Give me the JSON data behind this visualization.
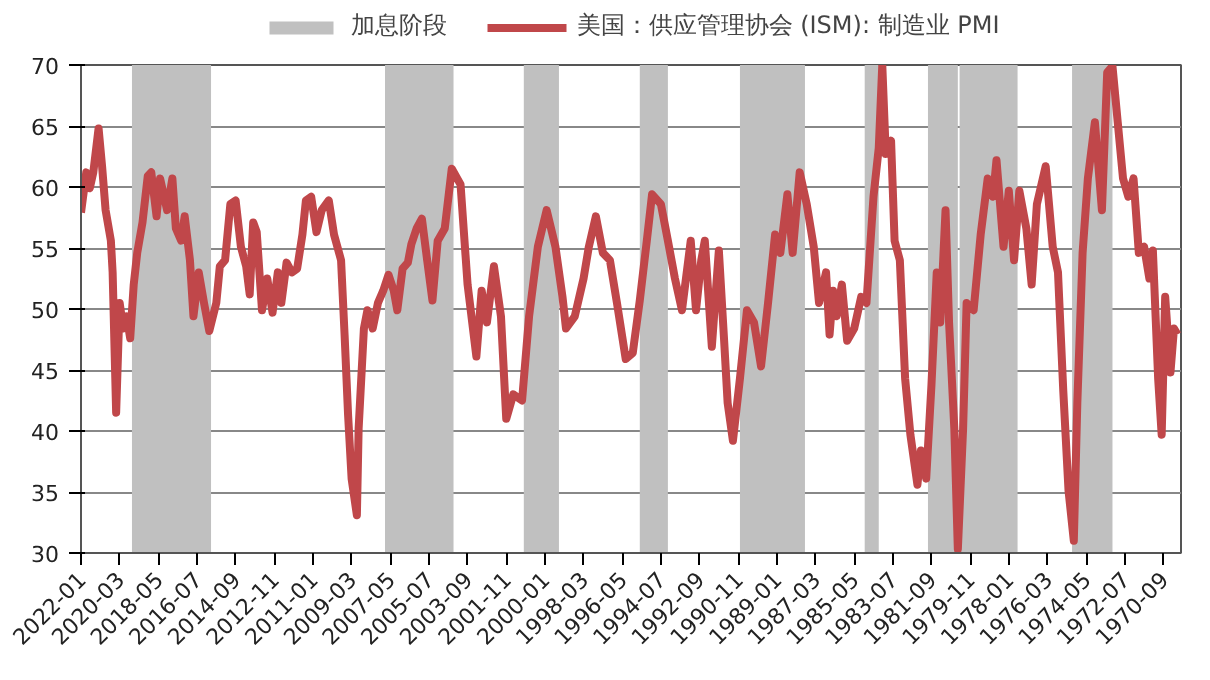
{
  "chart_data": {
    "type": "line",
    "xlim": [
      "2022-01",
      "1969-11"
    ],
    "ylim": [
      30,
      70
    ],
    "yticks": [
      30,
      35,
      40,
      45,
      50,
      55,
      60,
      65,
      70
    ],
    "xticks": [
      "2022-01",
      "2020-03",
      "2018-05",
      "2016-07",
      "2014-09",
      "2012-11",
      "2011-01",
      "2009-03",
      "2007-05",
      "2005-07",
      "2003-09",
      "2001-11",
      "2000-01",
      "1998-03",
      "1996-05",
      "1994-07",
      "1992-09",
      "1990-11",
      "1989-01",
      "1987-03",
      "1985-05",
      "1983-07",
      "1981-09",
      "1979-11",
      "1978-01",
      "1976-03",
      "1974-05",
      "1972-07",
      "1970-09"
    ],
    "grid": "y",
    "legend": "top",
    "bands": [
      {
        "axis": "x",
        "from": "2015-11",
        "to": "2019-08",
        "label": "加息阶段",
        "color": "#c0c0c0"
      },
      {
        "axis": "x",
        "from": "2004-05",
        "to": "2007-08",
        "color": "#c0c0c0"
      },
      {
        "axis": "x",
        "from": "1999-05",
        "to": "2001-01",
        "color": "#c0c0c0"
      },
      {
        "axis": "x",
        "from": "1994-03",
        "to": "1995-07",
        "color": "#c0c0c0"
      },
      {
        "axis": "x",
        "from": "1987-09",
        "to": "1990-10",
        "color": "#c0c0c0"
      },
      {
        "axis": "x",
        "from": "1984-03",
        "to": "1984-11",
        "color": "#c0c0c0"
      },
      {
        "axis": "x",
        "from": "1980-06",
        "to": "1981-11",
        "color": "#c0c0c0"
      },
      {
        "axis": "x",
        "from": "1977-08",
        "to": "1980-05",
        "color": "#c0c0c0"
      },
      {
        "axis": "x",
        "from": "1973-02",
        "to": "1975-01",
        "color": "#c0c0c0"
      }
    ],
    "series": [
      {
        "name": "美国：供应管理协会 (ISM): 制造业 PMI",
        "color": "#c0474a",
        "x": [
          "2022-01",
          "2021-10",
          "2021-08",
          "2021-06",
          "2021-03",
          "2021-01",
          "2020-11",
          "2020-08",
          "2020-07",
          "2020-05",
          "2020-03",
          "2020-01",
          "2019-11",
          "2019-09",
          "2019-07",
          "2019-05",
          "2019-02",
          "2018-11",
          "2018-09",
          "2018-06",
          "2018-04",
          "2017-12",
          "2017-09",
          "2017-07",
          "2017-04",
          "2017-02",
          "2016-11",
          "2016-09",
          "2016-06",
          "2016-03",
          "2015-12",
          "2015-08",
          "2015-06",
          "2015-03",
          "2014-12",
          "2014-09",
          "2014-06",
          "2014-03",
          "2014-01",
          "2013-11",
          "2013-09",
          "2013-06",
          "2013-03",
          "2012-12",
          "2012-09",
          "2012-07",
          "2012-04",
          "2012-01",
          "2011-10",
          "2011-07",
          "2011-05",
          "2011-02",
          "2010-11",
          "2010-08",
          "2010-04",
          "2010-01",
          "2009-09",
          "2009-07",
          "2009-05",
          "2009-03",
          "2008-12",
          "2008-11",
          "2008-08",
          "2008-06",
          "2008-03",
          "2007-12",
          "2007-09",
          "2007-06",
          "2007-03",
          "2007-01",
          "2006-10",
          "2006-07",
          "2006-05",
          "2006-02",
          "2005-11",
          "2005-08",
          "2005-05",
          "2005-02",
          "2004-10",
          "2004-06",
          "2004-01",
          "2003-09",
          "2003-04",
          "2003-01",
          "2002-10",
          "2002-06",
          "2002-02",
          "2001-11",
          "2001-07",
          "2001-02",
          "2000-10",
          "2000-05",
          "1999-12",
          "1999-07",
          "1999-03",
          "1999-01",
          "1998-08",
          "1998-03",
          "1997-12",
          "1997-08",
          "1997-04",
          "1996-12",
          "1996-08",
          "1996-03",
          "1995-11",
          "1995-07",
          "1995-03",
          "1994-12",
          "1994-07",
          "1994-03",
          "1993-11",
          "1993-07",
          "1993-02",
          "1992-11",
          "1992-08",
          "1992-06",
          "1992-02",
          "1991-10",
          "1991-07",
          "1991-05",
          "1991-02",
          "1990-10",
          "1990-06",
          "1990-02",
          "1989-10",
          "1989-06",
          "1989-02",
          "1988-11",
          "1988-07",
          "1988-04",
          "1987-12",
          "1987-08",
          "1987-04",
          "1987-01",
          "1986-09",
          "1986-07",
          "1986-05",
          "1986-03",
          "1985-12",
          "1985-09",
          "1985-05",
          "1985-01",
          "1984-10",
          "1984-06",
          "1984-03",
          "1984-01",
          "1983-11",
          "1983-08",
          "1983-06",
          "1983-03",
          "1982-12",
          "1982-09",
          "1982-05",
          "1982-03",
          "1981-12",
          "1981-09",
          "1981-06",
          "1981-04",
          "1981-01",
          "1980-11",
          "1980-08",
          "1980-06",
          "1980-03",
          "1980-01",
          "1979-09",
          "1979-05",
          "1979-01",
          "1978-10",
          "1978-08",
          "1978-04",
          "1978-01",
          "1977-10",
          "1977-07",
          "1977-03",
          "1976-12",
          "1976-09",
          "1976-04",
          "1975-12",
          "1975-09",
          "1975-06",
          "1975-03",
          "1974-12",
          "1974-10",
          "1974-07",
          "1974-04",
          "1973-12",
          "1973-08",
          "1973-05",
          "1973-02",
          "1972-11",
          "1972-08",
          "1972-05",
          "1972-02",
          "1971-11",
          "1971-08",
          "1971-05",
          "1971-03",
          "1970-12",
          "1970-10",
          "1970-08",
          "1970-05",
          "1970-03",
          "1970-01"
        ],
        "values": [
          57.9,
          61.2,
          59.9,
          61.2,
          64.8,
          61.7,
          58.1,
          55.6,
          53.0,
          41.5,
          50.5,
          48.4,
          49.4,
          47.6,
          52.0,
          54.6,
          57.1,
          60.9,
          61.2,
          57.6,
          60.7,
          58.1,
          60.7,
          56.6,
          55.6,
          57.6,
          54.0,
          49.4,
          53.0,
          50.5,
          48.2,
          50.5,
          53.5,
          54.0,
          58.6,
          58.9,
          55.1,
          53.5,
          51.2,
          57.1,
          56.3,
          49.9,
          52.5,
          49.7,
          53.0,
          50.5,
          53.8,
          53.0,
          53.3,
          56.1,
          58.9,
          59.2,
          56.3,
          58.1,
          58.9,
          56.1,
          54.0,
          47.9,
          41.3,
          36.1,
          33.1,
          40.2,
          48.4,
          49.9,
          48.4,
          50.5,
          51.5,
          52.8,
          51.5,
          49.9,
          53.3,
          53.8,
          55.3,
          56.6,
          57.4,
          54.0,
          50.7,
          55.6,
          56.6,
          61.5,
          60.2,
          52.0,
          46.1,
          51.5,
          48.9,
          53.5,
          49.4,
          41.0,
          43.0,
          42.5,
          49.4,
          55.1,
          58.1,
          55.1,
          51.0,
          48.4,
          49.4,
          52.5,
          55.1,
          57.6,
          54.6,
          54.0,
          50.5,
          45.9,
          46.4,
          50.7,
          55.6,
          59.4,
          58.6,
          55.6,
          52.5,
          49.9,
          55.6,
          49.9,
          54.0,
          55.6,
          46.9,
          54.8,
          47.4,
          42.3,
          39.2,
          44.3,
          49.9,
          48.9,
          45.3,
          50.5,
          56.1,
          54.6,
          59.4,
          54.6,
          61.2,
          58.6,
          55.1,
          50.5,
          53.0,
          47.9,
          51.5,
          49.4,
          52.0,
          47.4,
          48.4,
          51.0,
          50.5,
          59.2,
          63.2,
          70.0,
          62.7,
          63.8,
          55.6,
          54.0,
          44.3,
          39.7,
          35.6,
          38.4,
          36.1,
          43.8,
          53.0,
          48.9,
          58.1,
          48.9,
          40.2,
          30.3,
          40.2,
          50.5,
          49.9,
          56.1,
          60.7,
          59.2,
          62.2,
          55.1,
          59.7,
          54.0,
          59.7,
          56.6,
          52.0,
          58.6,
          61.7,
          55.1,
          53.0,
          43.3,
          35.1,
          31.0,
          42.3,
          54.6,
          60.7,
          65.3,
          58.1,
          69.4,
          69.9,
          65.3,
          60.7,
          59.2,
          60.7,
          54.6,
          55.1,
          52.5,
          54.8,
          44.3,
          39.7,
          51.0,
          44.8,
          48.4,
          47.9
        ]
      }
    ]
  }
}
